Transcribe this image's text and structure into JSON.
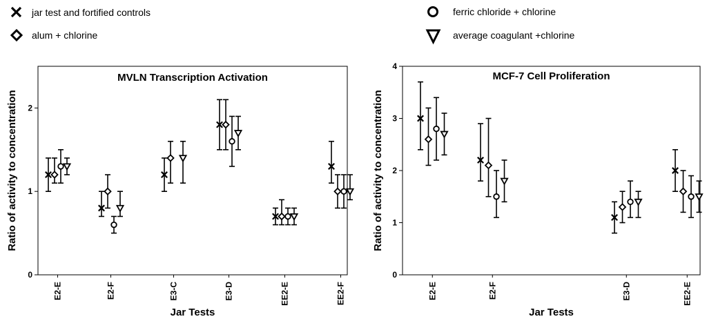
{
  "legend": {
    "items": [
      {
        "marker": "x",
        "label": "jar test and fortified controls"
      },
      {
        "marker": "diamond",
        "label": "alum + chlorine"
      },
      {
        "marker": "circle",
        "label": "ferric chloride + chlorine"
      },
      {
        "marker": "triangle-down",
        "label": "average coagulant +chlorine"
      }
    ]
  },
  "chart_data": [
    {
      "type": "scatter",
      "title": "MVLN Transcription Activation",
      "xlabel": "Jar Tests",
      "ylabel": "Ratio of activity to concentration",
      "ylim": [
        0,
        2.5
      ],
      "yticks": [
        0,
        1,
        2
      ],
      "categories": [
        "E2-E",
        "E2-F",
        "E3-C",
        "E3-D",
        "EE2-E",
        "EE2-F"
      ],
      "series": [
        {
          "name": "jar test and fortified controls",
          "marker": "x",
          "values": [
            1.2,
            0.8,
            1.2,
            1.8,
            0.7,
            1.3
          ],
          "low": [
            1.0,
            0.7,
            1.0,
            1.5,
            0.6,
            1.1
          ],
          "high": [
            1.4,
            1.0,
            1.4,
            2.1,
            0.8,
            1.6
          ]
        },
        {
          "name": "alum + chlorine",
          "marker": "diamond",
          "values": [
            1.2,
            1.0,
            1.4,
            1.8,
            0.7,
            1.0
          ],
          "low": [
            1.1,
            0.8,
            1.1,
            1.5,
            0.6,
            0.8
          ],
          "high": [
            1.4,
            1.2,
            1.6,
            2.1,
            0.9,
            1.2
          ]
        },
        {
          "name": "ferric chloride + chlorine",
          "marker": "circle",
          "values": [
            1.3,
            0.6,
            null,
            1.6,
            0.7,
            1.0
          ],
          "low": [
            1.1,
            0.5,
            null,
            1.3,
            0.6,
            0.8
          ],
          "high": [
            1.5,
            0.7,
            null,
            1.9,
            0.8,
            1.2
          ]
        },
        {
          "name": "average coagulant +chlorine",
          "marker": "triangle-down",
          "values": [
            1.3,
            0.8,
            1.4,
            1.7,
            0.7,
            1.0
          ],
          "low": [
            1.2,
            0.7,
            1.1,
            1.5,
            0.6,
            0.9
          ],
          "high": [
            1.4,
            1.0,
            1.6,
            1.9,
            0.8,
            1.2
          ]
        }
      ]
    },
    {
      "type": "scatter",
      "title": "MCF-7 Cell Proliferation",
      "xlabel": "Jar Tests",
      "ylabel": "Ratio of activity to concentration",
      "ylim": [
        0,
        4
      ],
      "yticks": [
        0,
        1,
        2,
        3,
        4
      ],
      "categories": [
        "E2-E",
        "E2-F",
        "E3-D",
        "EE2-E"
      ],
      "series": [
        {
          "name": "jar test and fortified controls",
          "marker": "x",
          "values": [
            3.0,
            2.2,
            1.1,
            2.0
          ],
          "low": [
            2.4,
            1.8,
            0.8,
            1.6
          ],
          "high": [
            3.7,
            2.9,
            1.4,
            2.4
          ]
        },
        {
          "name": "alum + chlorine",
          "marker": "diamond",
          "values": [
            2.6,
            2.1,
            1.3,
            1.6
          ],
          "low": [
            2.1,
            1.5,
            1.0,
            1.2
          ],
          "high": [
            3.2,
            3.0,
            1.6,
            2.0
          ]
        },
        {
          "name": "ferric chloride + chlorine",
          "marker": "circle",
          "values": [
            2.8,
            1.5,
            1.4,
            1.5
          ],
          "low": [
            2.2,
            1.1,
            1.1,
            1.1
          ],
          "high": [
            3.4,
            2.0,
            1.8,
            1.9
          ]
        },
        {
          "name": "average coagulant +chlorine",
          "marker": "triangle-down",
          "values": [
            2.7,
            1.8,
            1.4,
            1.5
          ],
          "low": [
            2.3,
            1.4,
            1.1,
            1.2
          ],
          "high": [
            3.1,
            2.2,
            1.6,
            1.8
          ]
        }
      ]
    }
  ]
}
